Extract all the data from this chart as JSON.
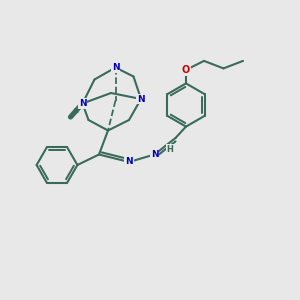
{
  "bg_color": "#e8e8e8",
  "bond_color": "#3a6a5a",
  "n_color": "#0000bb",
  "o_color": "#cc0000",
  "line_width": 1.5,
  "figsize": [
    3.0,
    3.0
  ],
  "dpi": 100,
  "xlim": [
    0,
    10
  ],
  "ylim": [
    0,
    10
  ]
}
